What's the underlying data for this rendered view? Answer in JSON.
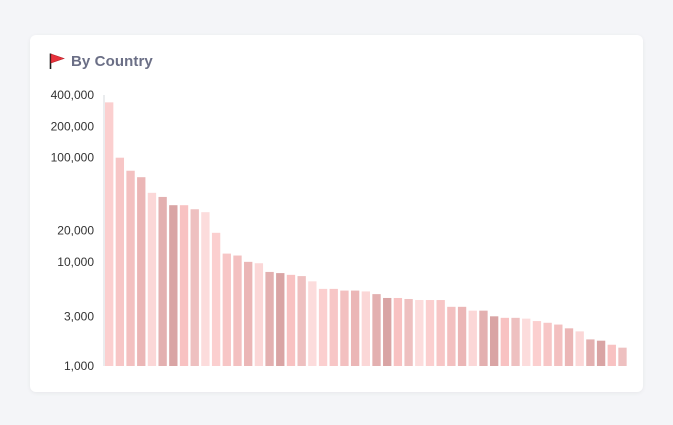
{
  "card": {
    "title": "By Country",
    "icon": "flag-icon"
  },
  "colors": {
    "title": "#6b6f86",
    "flag": "#e8323c",
    "axis": "#d6d8de",
    "bars": [
      "#fbcfcf",
      "#f7c6c6",
      "#f3c0c0",
      "#ebb6b6",
      "#fbd7d7",
      "#e3b0b0",
      "#d9a4a4",
      "#f8c2c2",
      "#eec0c0",
      "#fcdcdc"
    ]
  },
  "chart_data": {
    "type": "bar",
    "scale": "log",
    "title": "By Country",
    "xlabel": "",
    "ylabel": "",
    "ylim": [
      1000,
      400000
    ],
    "y_ticks": [
      {
        "value": 1000,
        "label": "1,000"
      },
      {
        "value": 3000,
        "label": "3,000"
      },
      {
        "value": 10000,
        "label": "10,000"
      },
      {
        "value": 20000,
        "label": "20,000"
      },
      {
        "value": 100000,
        "label": "100,000"
      },
      {
        "value": 200000,
        "label": "200,000"
      },
      {
        "value": 400000,
        "label": "400,000"
      }
    ],
    "values": [
      340000,
      100000,
      75000,
      65000,
      46000,
      42000,
      35000,
      35000,
      32000,
      30000,
      19000,
      12000,
      11500,
      10000,
      9700,
      8000,
      7800,
      7500,
      7300,
      6500,
      5500,
      5500,
      5300,
      5300,
      5200,
      4900,
      4500,
      4500,
      4400,
      4300,
      4300,
      4300,
      3700,
      3700,
      3400,
      3400,
      3000,
      2900,
      2900,
      2850,
      2700,
      2600,
      2500,
      2300,
      2150,
      1800,
      1750,
      1600,
      1500
    ]
  }
}
